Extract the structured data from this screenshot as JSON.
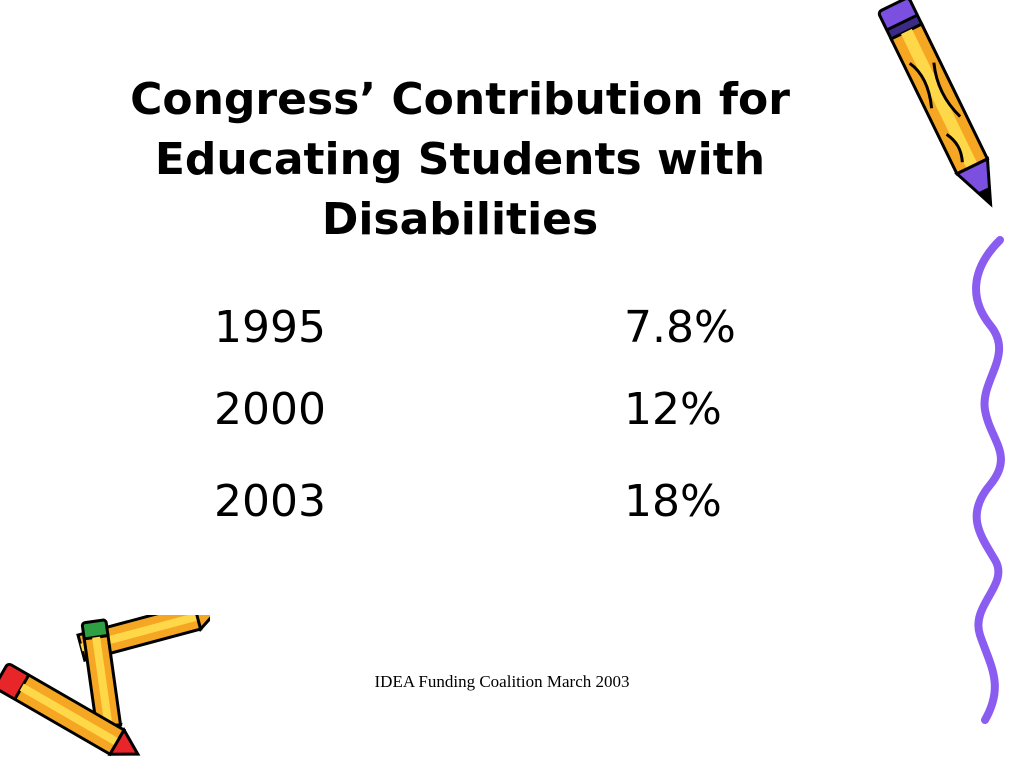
{
  "slide": {
    "title_lines": [
      "Congress’ Contribution for",
      "Educating Students with",
      "Disabilities"
    ],
    "rows": [
      {
        "year": "1995",
        "percent": "7.8%"
      },
      {
        "year": "2000",
        "percent": "12%"
      },
      {
        "year": "2003",
        "percent": "18%"
      }
    ],
    "footer": "IDEA Funding Coalition March 2003"
  },
  "decorations": {
    "top_right": "pencil-icon",
    "right_edge": "squiggle-line",
    "bottom_left": "pencils-icon"
  },
  "colors": {
    "text": "#000000",
    "pencil_body": "#f5a623",
    "pencil_band": "#ffd84a",
    "eraser_purple": "#7b4fe0",
    "eraser_red": "#e8262a",
    "eraser_green": "#2ea043",
    "squiggle": "#8a5cf0"
  }
}
